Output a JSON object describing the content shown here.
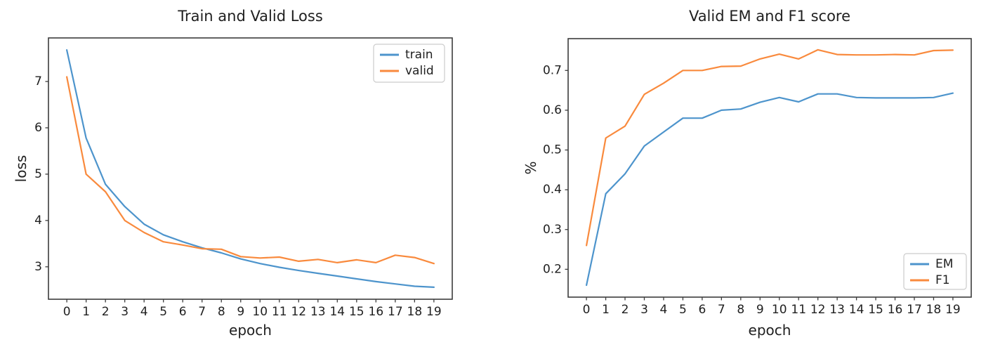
{
  "figure": {
    "background": "#ffffff",
    "text_color": "#1f1f1f",
    "spine_color": "#3c3c3c"
  },
  "chart_data": [
    {
      "type": "line",
      "title": "Train and Valid Loss",
      "xlabel": "epoch",
      "ylabel": "loss",
      "x": [
        0,
        1,
        2,
        3,
        4,
        5,
        6,
        7,
        8,
        9,
        10,
        11,
        12,
        13,
        14,
        15,
        16,
        17,
        18,
        19
      ],
      "x_tick_labels": [
        "0",
        "1",
        "2",
        "3",
        "4",
        "5",
        "6",
        "7",
        "8",
        "9",
        "10",
        "11",
        "12",
        "13",
        "14",
        "15",
        "16",
        "17",
        "18",
        "19"
      ],
      "y_ticks": [
        3,
        4,
        5,
        6,
        7
      ],
      "y_tick_labels": [
        "3",
        "4",
        "5",
        "6",
        "7"
      ],
      "xlim": [
        -0.95,
        19.95
      ],
      "ylim": [
        2.3,
        7.94
      ],
      "grid": false,
      "legend": {
        "position": "top-right",
        "labels": [
          "train",
          "valid"
        ]
      },
      "series": [
        {
          "name": "train",
          "color": "#4d94cc",
          "values": [
            7.68,
            5.78,
            4.78,
            4.3,
            3.92,
            3.69,
            3.54,
            3.41,
            3.3,
            3.17,
            3.07,
            2.99,
            2.92,
            2.86,
            2.8,
            2.74,
            2.68,
            2.63,
            2.58,
            2.56
          ]
        },
        {
          "name": "valid",
          "color": "#f98a3d",
          "values": [
            7.1,
            5.0,
            4.62,
            4.0,
            3.74,
            3.54,
            3.47,
            3.39,
            3.38,
            3.22,
            3.19,
            3.21,
            3.12,
            3.16,
            3.09,
            3.15,
            3.09,
            3.25,
            3.2,
            3.07
          ]
        }
      ]
    },
    {
      "type": "line",
      "title": "Valid EM and F1 score",
      "xlabel": "epoch",
      "ylabel": "%",
      "x": [
        0,
        1,
        2,
        3,
        4,
        5,
        6,
        7,
        8,
        9,
        10,
        11,
        12,
        13,
        14,
        15,
        16,
        17,
        18,
        19
      ],
      "x_tick_labels": [
        "0",
        "1",
        "2",
        "3",
        "4",
        "5",
        "6",
        "7",
        "8",
        "9",
        "10",
        "11",
        "12",
        "13",
        "14",
        "15",
        "16",
        "17",
        "18",
        "19"
      ],
      "y_ticks": [
        0.2,
        0.3,
        0.4,
        0.5,
        0.6,
        0.7
      ],
      "y_tick_labels": [
        "0.2",
        "0.3",
        "0.4",
        "0.5",
        "0.6",
        "0.7"
      ],
      "xlim": [
        -0.95,
        19.95
      ],
      "ylim": [
        0.13,
        0.78
      ],
      "grid": false,
      "legend": {
        "position": "bottom-right",
        "labels": [
          "EM",
          "F1"
        ]
      },
      "series": [
        {
          "name": "EM",
          "color": "#4d94cc",
          "values": [
            0.16,
            0.39,
            0.44,
            0.51,
            0.545,
            0.58,
            0.58,
            0.6,
            0.603,
            0.62,
            0.632,
            0.621,
            0.641,
            0.641,
            0.632,
            0.631,
            0.631,
            0.631,
            0.632,
            0.643
          ]
        },
        {
          "name": "F1",
          "color": "#f98a3d",
          "values": [
            0.26,
            0.53,
            0.56,
            0.64,
            0.668,
            0.7,
            0.7,
            0.71,
            0.711,
            0.729,
            0.741,
            0.729,
            0.752,
            0.74,
            0.739,
            0.739,
            0.74,
            0.739,
            0.75,
            0.751
          ]
        }
      ]
    }
  ]
}
